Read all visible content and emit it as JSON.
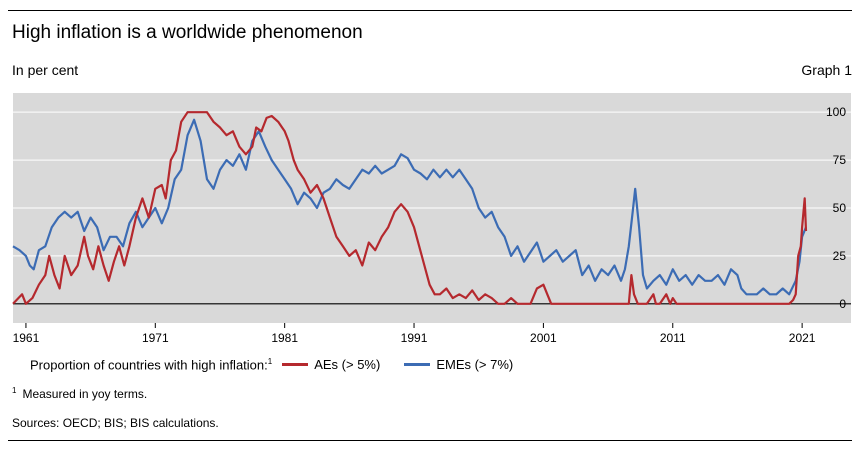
{
  "header": {
    "title": "High inflation is a worldwide phenomenon",
    "subtitle": "In per cent",
    "graph_number": "Graph 1"
  },
  "legend": {
    "prefix": "Proportion of countries with high inflation:",
    "prefix_footnote_mark": "1"
  },
  "footnote": {
    "mark": "1",
    "text": "Measured in yoy terms."
  },
  "sources": "Sources: OECD; BIS; BIS calculations.",
  "colors": {
    "ae": "#b5292e",
    "eme": "#3c6cb4",
    "plot_bg": "#d9d9d9",
    "grid": "#ffffff",
    "zero": "#000000"
  },
  "chart_data": {
    "type": "line",
    "ylim": [
      -10,
      110
    ],
    "xlim": [
      1960,
      2023
    ],
    "yticks": [
      {
        "value": 100,
        "label": "100"
      },
      {
        "value": 75,
        "label": "75"
      },
      {
        "value": 50,
        "label": "50"
      },
      {
        "value": 25,
        "label": "25"
      },
      {
        "value": 0,
        "label": "0"
      }
    ],
    "xticks": [
      {
        "value": 1961,
        "label": "1961"
      },
      {
        "value": 1971,
        "label": "1971"
      },
      {
        "value": 1981,
        "label": "1981"
      },
      {
        "value": 1991,
        "label": "1991"
      },
      {
        "value": 2001,
        "label": "2001"
      },
      {
        "value": 2011,
        "label": "2011"
      },
      {
        "value": 2021,
        "label": "2021"
      }
    ],
    "y_axis_side": "right",
    "grid": true,
    "legend_position": "bottom",
    "series": [
      {
        "name": "AEs (> 5%)",
        "color": "#b5292e",
        "points": [
          [
            1960.0,
            0
          ],
          [
            1960.7,
            5
          ],
          [
            1961.0,
            0
          ],
          [
            1961.5,
            3
          ],
          [
            1962.0,
            10
          ],
          [
            1962.5,
            15
          ],
          [
            1962.8,
            25
          ],
          [
            1963.2,
            15
          ],
          [
            1963.6,
            8
          ],
          [
            1964.0,
            25
          ],
          [
            1964.5,
            15
          ],
          [
            1965.0,
            20
          ],
          [
            1965.5,
            35
          ],
          [
            1965.8,
            25
          ],
          [
            1966.2,
            18
          ],
          [
            1966.6,
            30
          ],
          [
            1967.0,
            20
          ],
          [
            1967.4,
            12
          ],
          [
            1967.8,
            22
          ],
          [
            1968.2,
            30
          ],
          [
            1968.6,
            20
          ],
          [
            1969.0,
            30
          ],
          [
            1969.5,
            45
          ],
          [
            1970.0,
            55
          ],
          [
            1970.5,
            45
          ],
          [
            1971.0,
            60
          ],
          [
            1971.5,
            62
          ],
          [
            1971.8,
            55
          ],
          [
            1972.2,
            75
          ],
          [
            1972.6,
            80
          ],
          [
            1973.0,
            95
          ],
          [
            1973.5,
            100
          ],
          [
            1975.0,
            100
          ],
          [
            1975.5,
            95
          ],
          [
            1976.0,
            92
          ],
          [
            1976.5,
            88
          ],
          [
            1977.0,
            90
          ],
          [
            1977.5,
            82
          ],
          [
            1978.0,
            78
          ],
          [
            1978.5,
            82
          ],
          [
            1978.8,
            92
          ],
          [
            1979.2,
            90
          ],
          [
            1979.6,
            97
          ],
          [
            1980.0,
            98
          ],
          [
            1980.5,
            95
          ],
          [
            1981.0,
            90
          ],
          [
            1981.3,
            85
          ],
          [
            1981.7,
            75
          ],
          [
            1982.0,
            70
          ],
          [
            1982.5,
            65
          ],
          [
            1983.0,
            58
          ],
          [
            1983.5,
            62
          ],
          [
            1984.0,
            55
          ],
          [
            1984.5,
            45
          ],
          [
            1985.0,
            35
          ],
          [
            1985.5,
            30
          ],
          [
            1986.0,
            25
          ],
          [
            1986.5,
            28
          ],
          [
            1987.0,
            20
          ],
          [
            1987.5,
            32
          ],
          [
            1988.0,
            28
          ],
          [
            1988.5,
            35
          ],
          [
            1989.0,
            40
          ],
          [
            1989.5,
            48
          ],
          [
            1990.0,
            52
          ],
          [
            1990.5,
            48
          ],
          [
            1991.0,
            40
          ],
          [
            1991.4,
            30
          ],
          [
            1991.8,
            20
          ],
          [
            1992.2,
            10
          ],
          [
            1992.6,
            5
          ],
          [
            1993.0,
            5
          ],
          [
            1993.5,
            8
          ],
          [
            1994.0,
            3
          ],
          [
            1994.5,
            5
          ],
          [
            1995.0,
            3
          ],
          [
            1995.5,
            7
          ],
          [
            1996.0,
            2
          ],
          [
            1996.5,
            5
          ],
          [
            1997.0,
            3
          ],
          [
            1997.5,
            0
          ],
          [
            1998.0,
            0
          ],
          [
            1998.5,
            3
          ],
          [
            1999.0,
            0
          ],
          [
            1999.5,
            0
          ],
          [
            2000.0,
            0
          ],
          [
            2000.5,
            8
          ],
          [
            2001.0,
            10
          ],
          [
            2001.3,
            5
          ],
          [
            2001.6,
            0
          ],
          [
            2005.0,
            0
          ],
          [
            2005.5,
            0
          ],
          [
            2006.0,
            0
          ],
          [
            2007.0,
            0
          ],
          [
            2007.6,
            0
          ],
          [
            2007.8,
            15
          ],
          [
            2008.0,
            5
          ],
          [
            2008.3,
            0
          ],
          [
            2009.0,
            0
          ],
          [
            2009.5,
            5
          ],
          [
            2009.7,
            0
          ],
          [
            2010.0,
            0
          ],
          [
            2010.5,
            5
          ],
          [
            2010.8,
            0
          ],
          [
            2011.0,
            3
          ],
          [
            2011.3,
            0
          ],
          [
            2020.0,
            0
          ],
          [
            2020.3,
            2
          ],
          [
            2020.5,
            5
          ],
          [
            2020.7,
            25
          ],
          [
            2020.9,
            30
          ],
          [
            2021.0,
            40
          ],
          [
            2021.2,
            55
          ],
          [
            2021.3,
            38
          ]
        ]
      },
      {
        "name": "EMEs (> 7%)",
        "color": "#3c6cb4",
        "points": [
          [
            1960.0,
            30
          ],
          [
            1960.5,
            28
          ],
          [
            1961.0,
            25
          ],
          [
            1961.3,
            20
          ],
          [
            1961.6,
            18
          ],
          [
            1962.0,
            28
          ],
          [
            1962.5,
            30
          ],
          [
            1963.0,
            40
          ],
          [
            1963.5,
            45
          ],
          [
            1964.0,
            48
          ],
          [
            1964.5,
            45
          ],
          [
            1965.0,
            48
          ],
          [
            1965.5,
            38
          ],
          [
            1966.0,
            45
          ],
          [
            1966.5,
            40
          ],
          [
            1967.0,
            28
          ],
          [
            1967.5,
            35
          ],
          [
            1968.0,
            35
          ],
          [
            1968.5,
            30
          ],
          [
            1969.0,
            42
          ],
          [
            1969.5,
            48
          ],
          [
            1970.0,
            40
          ],
          [
            1970.5,
            45
          ],
          [
            1971.0,
            50
          ],
          [
            1971.5,
            42
          ],
          [
            1972.0,
            50
          ],
          [
            1972.5,
            65
          ],
          [
            1973.0,
            70
          ],
          [
            1973.5,
            88
          ],
          [
            1974.0,
            96
          ],
          [
            1974.5,
            85
          ],
          [
            1975.0,
            65
          ],
          [
            1975.5,
            60
          ],
          [
            1976.0,
            70
          ],
          [
            1976.5,
            75
          ],
          [
            1977.0,
            72
          ],
          [
            1977.5,
            78
          ],
          [
            1978.0,
            70
          ],
          [
            1978.5,
            85
          ],
          [
            1979.0,
            90
          ],
          [
            1979.5,
            82
          ],
          [
            1980.0,
            75
          ],
          [
            1980.5,
            70
          ],
          [
            1981.0,
            65
          ],
          [
            1981.5,
            60
          ],
          [
            1982.0,
            52
          ],
          [
            1982.5,
            58
          ],
          [
            1983.0,
            55
          ],
          [
            1983.5,
            50
          ],
          [
            1984.0,
            58
          ],
          [
            1984.5,
            60
          ],
          [
            1985.0,
            65
          ],
          [
            1985.5,
            62
          ],
          [
            1986.0,
            60
          ],
          [
            1986.5,
            65
          ],
          [
            1987.0,
            70
          ],
          [
            1987.5,
            68
          ],
          [
            1988.0,
            72
          ],
          [
            1988.5,
            68
          ],
          [
            1989.0,
            70
          ],
          [
            1989.5,
            72
          ],
          [
            1990.0,
            78
          ],
          [
            1990.5,
            76
          ],
          [
            1991.0,
            70
          ],
          [
            1991.5,
            68
          ],
          [
            1992.0,
            65
          ],
          [
            1992.5,
            70
          ],
          [
            1993.0,
            66
          ],
          [
            1993.5,
            70
          ],
          [
            1994.0,
            66
          ],
          [
            1994.5,
            70
          ],
          [
            1995.0,
            65
          ],
          [
            1995.5,
            60
          ],
          [
            1996.0,
            50
          ],
          [
            1996.5,
            45
          ],
          [
            1997.0,
            48
          ],
          [
            1997.5,
            40
          ],
          [
            1998.0,
            35
          ],
          [
            1998.5,
            25
          ],
          [
            1999.0,
            30
          ],
          [
            1999.5,
            22
          ],
          [
            2000.0,
            27
          ],
          [
            2000.5,
            32
          ],
          [
            2001.0,
            22
          ],
          [
            2001.5,
            25
          ],
          [
            2002.0,
            28
          ],
          [
            2002.5,
            22
          ],
          [
            2003.0,
            25
          ],
          [
            2003.5,
            28
          ],
          [
            2004.0,
            15
          ],
          [
            2004.5,
            20
          ],
          [
            2005.0,
            12
          ],
          [
            2005.5,
            18
          ],
          [
            2006.0,
            15
          ],
          [
            2006.5,
            20
          ],
          [
            2007.0,
            12
          ],
          [
            2007.3,
            18
          ],
          [
            2007.6,
            30
          ],
          [
            2007.9,
            48
          ],
          [
            2008.1,
            60
          ],
          [
            2008.4,
            40
          ],
          [
            2008.7,
            15
          ],
          [
            2009.0,
            8
          ],
          [
            2009.5,
            12
          ],
          [
            2010.0,
            15
          ],
          [
            2010.5,
            10
          ],
          [
            2011.0,
            18
          ],
          [
            2011.5,
            12
          ],
          [
            2012.0,
            15
          ],
          [
            2012.5,
            10
          ],
          [
            2013.0,
            15
          ],
          [
            2013.5,
            12
          ],
          [
            2014.0,
            12
          ],
          [
            2014.5,
            15
          ],
          [
            2015.0,
            10
          ],
          [
            2015.5,
            18
          ],
          [
            2016.0,
            15
          ],
          [
            2016.3,
            8
          ],
          [
            2016.7,
            5
          ],
          [
            2017.5,
            5
          ],
          [
            2018.0,
            8
          ],
          [
            2018.5,
            5
          ],
          [
            2019.0,
            5
          ],
          [
            2019.5,
            8
          ],
          [
            2020.0,
            5
          ],
          [
            2020.5,
            12
          ],
          [
            2020.8,
            22
          ],
          [
            2021.0,
            35
          ],
          [
            2021.3,
            40
          ]
        ]
      }
    ]
  }
}
